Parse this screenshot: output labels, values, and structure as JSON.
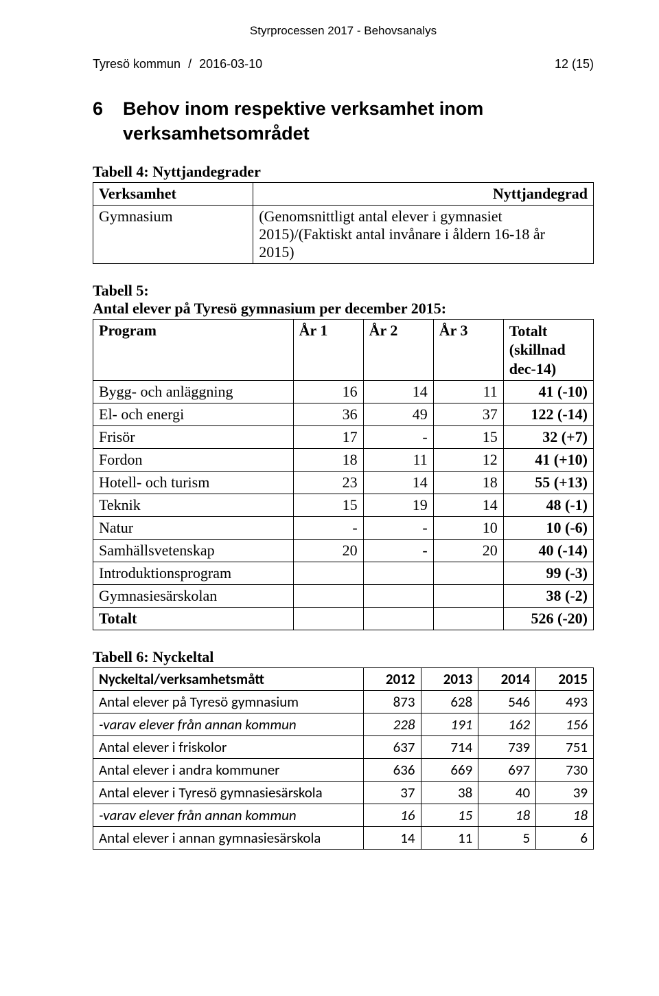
{
  "top_header": "Styrprocessen 2017 - Behovsanalys",
  "meta": {
    "org": "Tyresö kommun",
    "sep": "/",
    "date": "2016-03-10",
    "page": "12 (15)"
  },
  "section": {
    "num": "6",
    "line1": "Behov inom respektive verksamhet inom",
    "line2": "verksamhetsområdet"
  },
  "table4": {
    "title": "Tabell 4: Nyttjandegrader",
    "cols": [
      "Verksamhet",
      "Nyttjandegrad"
    ],
    "row_label": "Gymnasium",
    "row_value_l1": "(Genomsnittligt antal elever i gymnasiet",
    "row_value_l2": "2015)/(Faktiskt antal invånare i åldern 16-18 år",
    "row_value_l3": "2015)"
  },
  "table5": {
    "title_l1": "Tabell 5:",
    "title_l2": "Antal elever på Tyresö gymnasium per december 2015:",
    "cols": [
      "Program",
      "År 1",
      "År 2",
      "År 3",
      "Totalt (skillnad dec-14)"
    ],
    "col_totalt_l1": "Totalt",
    "col_totalt_l2": "(skillnad",
    "col_totalt_l3": "dec-14)",
    "rows": [
      {
        "p": "Bygg- och anläggning",
        "a1": "16",
        "a2": "14",
        "a3": "11",
        "t": "41 (-10)"
      },
      {
        "p": "El- och energi",
        "a1": "36",
        "a2": "49",
        "a3": "37",
        "t": "122 (-14)"
      },
      {
        "p": "Frisör",
        "a1": "17",
        "a2": "-",
        "a3": "15",
        "t": "32 (+7)"
      },
      {
        "p": "Fordon",
        "a1": "18",
        "a2": "11",
        "a3": "12",
        "t": "41 (+10)"
      },
      {
        "p": "Hotell- och turism",
        "a1": "23",
        "a2": "14",
        "a3": "18",
        "t": "55 (+13)"
      },
      {
        "p": "Teknik",
        "a1": "15",
        "a2": "19",
        "a3": "14",
        "t": "48 (-1)"
      },
      {
        "p": "Natur",
        "a1": "-",
        "a2": "-",
        "a3": "10",
        "t": "10 (-6)"
      },
      {
        "p": "Samhällsvetenskap",
        "a1": "20",
        "a2": "-",
        "a3": "20",
        "t": "40 (-14)"
      },
      {
        "p": "Introduktionsprogram",
        "a1": "",
        "a2": "",
        "a3": "",
        "t": "99 (-3)"
      },
      {
        "p": "Gymnasiesärskolan",
        "a1": "",
        "a2": "",
        "a3": "",
        "t": "38 (-2)"
      }
    ],
    "total_row": {
      "p": "Totalt",
      "a1": "",
      "a2": "",
      "a3": "",
      "t": "526 (-20)"
    }
  },
  "table6": {
    "title": "Tabell 6: Nyckeltal",
    "cols": [
      "Nyckeltal/verksamhetsmått",
      "2012",
      "2013",
      "2014",
      "2015"
    ],
    "rows": [
      {
        "l": "Antal elever på Tyresö gymnasium",
        "v": [
          "873",
          "628",
          "546",
          "493"
        ],
        "italic": false
      },
      {
        "l": "-varav elever från annan kommun",
        "v": [
          "228",
          "191",
          "162",
          "156"
        ],
        "italic": true
      },
      {
        "l": "Antal elever i friskolor",
        "v": [
          "637",
          "714",
          "739",
          "751"
        ],
        "italic": false
      },
      {
        "l": "Antal elever i andra kommuner",
        "v": [
          "636",
          "669",
          "697",
          "730"
        ],
        "italic": false
      },
      {
        "l": "Antal elever i Tyresö gymnasiesärskola",
        "v": [
          "37",
          "38",
          "40",
          "39"
        ],
        "italic": false
      },
      {
        "l": "-varav elever från annan kommun",
        "v": [
          "16",
          "15",
          "18",
          "18"
        ],
        "italic": true
      },
      {
        "l": "Antal elever i annan gymnasiesärskola",
        "v": [
          "14",
          "11",
          "5",
          "6"
        ],
        "italic": false
      }
    ]
  }
}
